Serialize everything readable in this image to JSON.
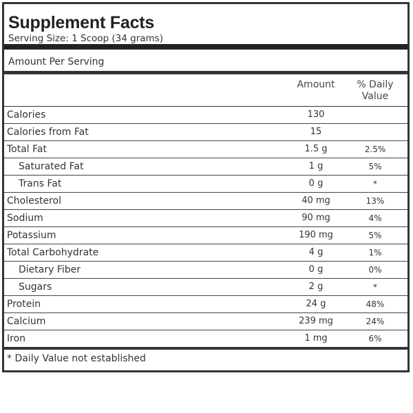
{
  "label": {
    "title": "Supplement Facts",
    "serving_size": "Serving Size: 1 Scoop (34 grams)",
    "amount_per_serving": "Amount Per Serving",
    "columns": {
      "amount": "Amount",
      "daily_value": "% Daily Value"
    },
    "rows": [
      {
        "nutrient": "Calories",
        "amount": "130",
        "dv": "",
        "indent": false
      },
      {
        "nutrient": "Calories from Fat",
        "amount": "15",
        "dv": "",
        "indent": false
      },
      {
        "nutrient": "Total Fat",
        "amount": "1.5 g",
        "dv": "2.5%",
        "indent": false
      },
      {
        "nutrient": "Saturated Fat",
        "amount": "1 g",
        "dv": "5%",
        "indent": true
      },
      {
        "nutrient": "Trans Fat",
        "amount": "0 g",
        "dv": "*",
        "indent": true
      },
      {
        "nutrient": "Cholesterol",
        "amount": "40 mg",
        "dv": "13%",
        "indent": false
      },
      {
        "nutrient": "Sodium",
        "amount": "90 mg",
        "dv": "4%",
        "indent": false
      },
      {
        "nutrient": "Potassium",
        "amount": "190 mg",
        "dv": "5%",
        "indent": false
      },
      {
        "nutrient": "Total Carbohydrate",
        "amount": "4 g",
        "dv": "1%",
        "indent": false
      },
      {
        "nutrient": "Dietary Fiber",
        "amount": "0 g",
        "dv": "0%",
        "indent": true
      },
      {
        "nutrient": "Sugars",
        "amount": "2 g",
        "dv": "*",
        "indent": true
      },
      {
        "nutrient": "Protein",
        "amount": "24 g",
        "dv": "48%",
        "indent": false
      },
      {
        "nutrient": "Calcium",
        "amount": "239 mg",
        "dv": "24%",
        "indent": false
      },
      {
        "nutrient": "Iron",
        "amount": "1 mg",
        "dv": "6%",
        "indent": false
      }
    ],
    "footnote": "* Daily Value not established"
  }
}
